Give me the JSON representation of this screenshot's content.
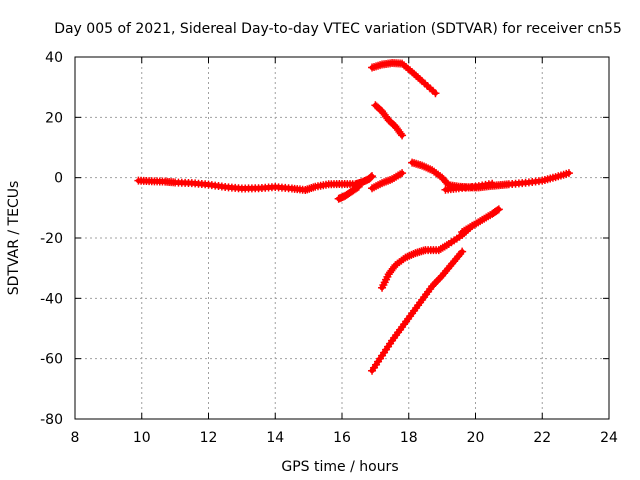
{
  "chart_data": {
    "type": "scatter",
    "title": "Day 005 of 2021, Sidereal Day-to-day VTEC variation (SDTVAR) for receiver cn55",
    "xlabel": "GPS time / hours",
    "ylabel": "SDTVAR / TECUs",
    "xlim": [
      8,
      24
    ],
    "ylim": [
      -80,
      40
    ],
    "xticks": [
      8,
      10,
      12,
      14,
      16,
      18,
      20,
      22,
      24
    ],
    "yticks": [
      -80,
      -60,
      -40,
      -20,
      0,
      20,
      40
    ],
    "grid": true,
    "legend": "none",
    "colors": {
      "series": "#ff0000",
      "grid": "#a0a0a0",
      "axis": "#000000"
    },
    "series": [
      {
        "x": [
          9.9,
          10.3,
          10.7,
          11.0,
          11.5,
          12.0,
          12.5,
          13.0,
          13.5,
          14.0,
          14.5,
          14.9,
          15.2,
          15.6,
          16.0,
          16.4,
          16.6,
          16.8,
          16.9
        ],
        "y": [
          -1,
          -1.2,
          -1.3,
          -1.6,
          -1.8,
          -2.3,
          -3.1,
          -3.6,
          -3.5,
          -3.1,
          -3.6,
          -4.1,
          -3.0,
          -2.2,
          -2.1,
          -2.2,
          -1.5,
          -0.5,
          0.5
        ]
      },
      {
        "x": [
          15.9,
          16.1,
          16.3,
          16.5
        ],
        "y": [
          -7,
          -6,
          -4.5,
          -3
        ]
      },
      {
        "x": [
          16.9,
          17.2,
          17.5,
          17.8
        ],
        "y": [
          -3.5,
          -1.8,
          -0.5,
          1.5
        ]
      },
      {
        "x": [
          17.0,
          17.2,
          17.4,
          17.6,
          17.8
        ],
        "y": [
          24,
          22,
          19,
          17,
          14
        ]
      },
      {
        "x": [
          16.9,
          17.2,
          17.5,
          17.8,
          18.1,
          18.4,
          18.8
        ],
        "y": [
          36.5,
          37.5,
          38,
          37.8,
          35,
          32,
          28
        ]
      },
      {
        "x": [
          18.1,
          18.4,
          18.7,
          19.0,
          19.2,
          19.5,
          19.8,
          20.1,
          20.4,
          20.7,
          21.0,
          21.5,
          22.0,
          22.4,
          22.8
        ],
        "y": [
          5,
          4,
          2.5,
          0,
          -2.5,
          -3,
          -3.2,
          -3.2,
          -2.8,
          -2.5,
          -2.2,
          -1.7,
          -1.0,
          0.2,
          1.5
        ]
      },
      {
        "x": [
          19.1,
          19.5,
          20.0,
          20.5
        ],
        "y": [
          -4,
          -3.5,
          -3.0,
          -2.0
        ]
      },
      {
        "x": [
          19.6,
          19.9,
          20.2,
          20.5,
          20.7
        ],
        "y": [
          -18,
          -16,
          -14,
          -12,
          -10.5
        ]
      },
      {
        "x": [
          17.2,
          17.4,
          17.6,
          17.9,
          18.2,
          18.5,
          18.9,
          19.2,
          19.6,
          19.9
        ],
        "y": [
          -36.5,
          -32,
          -29,
          -26.5,
          -25,
          -24,
          -24,
          -22,
          -19,
          -16
        ]
      },
      {
        "x": [
          16.9,
          17.2,
          17.5,
          17.8,
          18.1,
          18.4,
          18.7,
          19.0,
          19.3,
          19.6
        ],
        "y": [
          -64,
          -59,
          -54,
          -49.5,
          -45,
          -40.5,
          -36,
          -32.5,
          -28.5,
          -24.5
        ]
      }
    ]
  }
}
